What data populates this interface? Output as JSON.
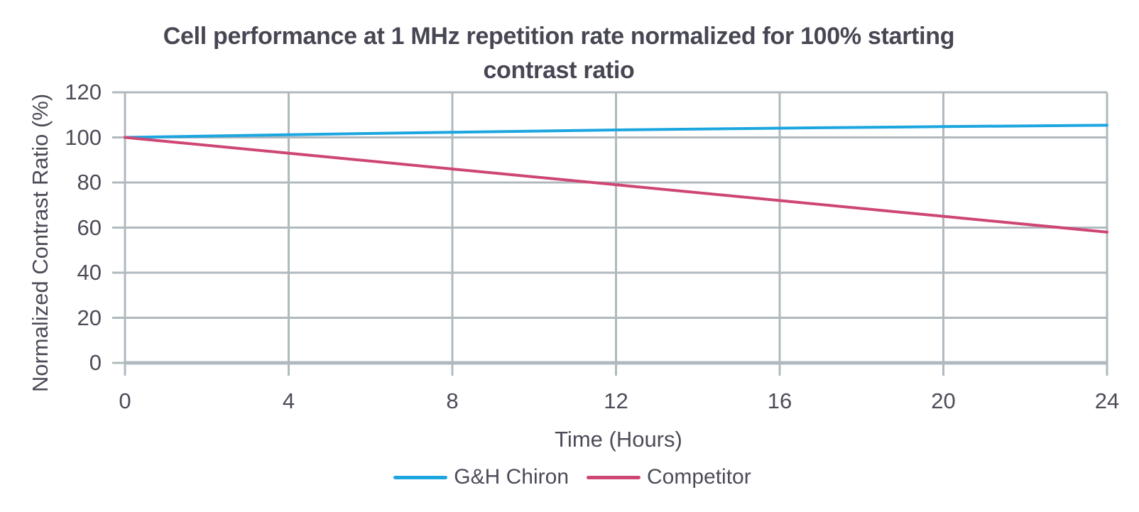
{
  "page": {
    "background": "#FFFFFF"
  },
  "chart_data": {
    "type": "line",
    "title": "Cell performance at 1 MHz repetition rate normalized for 100% starting contrast ratio",
    "title_lines": [
      "Cell performance at 1 MHz repetition rate normalized for 100% starting",
      "contrast ratio"
    ],
    "xlabel": "Time (Hours)",
    "ylabel": "Normalized Contrast Ratio (%)",
    "xlim": [
      0,
      24
    ],
    "ylim": [
      0,
      120
    ],
    "x_ticks": [
      0,
      4,
      8,
      12,
      16,
      20,
      24
    ],
    "y_ticks": [
      0,
      20,
      40,
      60,
      80,
      100,
      120
    ],
    "grid": true,
    "legend_position": "bottom",
    "x": [
      0,
      4,
      8,
      12,
      16,
      20,
      24
    ],
    "series": [
      {
        "name": "G&H Chiron",
        "color": "#1CA6E0",
        "values": [
          100,
          101.2,
          102.3,
          103.3,
          104.1,
          104.8,
          105.4
        ]
      },
      {
        "name": "Competitor",
        "color": "#CE4674",
        "values": [
          100,
          93,
          86,
          79,
          72,
          65,
          58
        ]
      }
    ],
    "colors": {
      "grid": "#B0B9BE",
      "axis_text": "#4C4C59",
      "title_text": "#474754",
      "background": "#FFFFFF"
    }
  }
}
